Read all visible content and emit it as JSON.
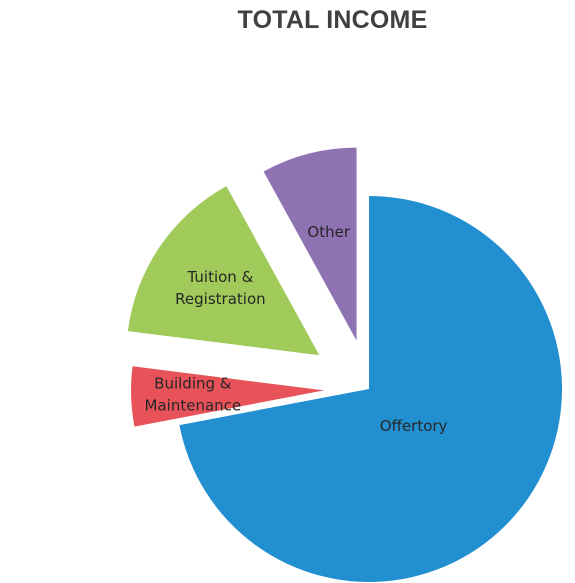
{
  "chart_data": {
    "type": "pie",
    "title": "TOTAL INCOME",
    "categories": [
      "Offertory",
      "Building & Maintenance",
      "Tuition & Registration",
      "Other"
    ],
    "values": [
      72,
      5,
      15,
      8
    ],
    "labels": [
      [
        "Offertory"
      ],
      [
        "Building &",
        "Maintenance"
      ],
      [
        "Tuition &",
        "Registration"
      ],
      [
        "Other"
      ]
    ],
    "colors": [
      "#228fd0",
      "#e8535a",
      "#a0ca5a",
      "#8e72b2"
    ],
    "exploded": [
      false,
      true,
      true,
      true
    ],
    "legend": "none"
  }
}
